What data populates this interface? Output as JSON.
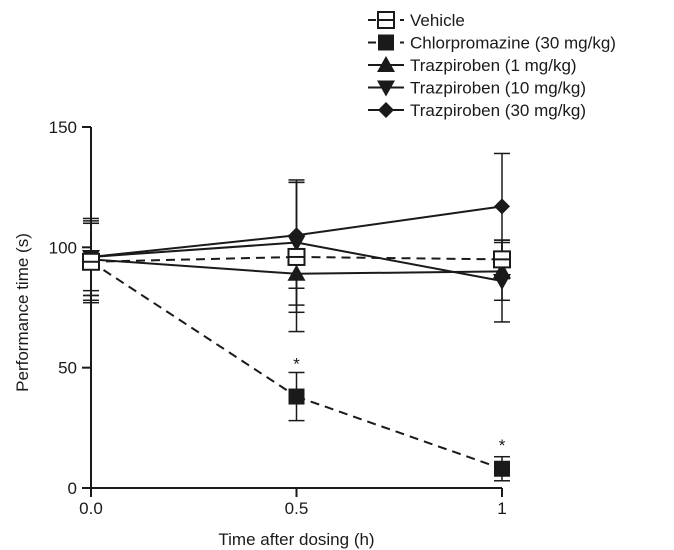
{
  "chart_data": {
    "type": "line",
    "xlabel": "Time after dosing (h)",
    "ylabel": "Performance time (s)",
    "xlim": [
      0,
      1
    ],
    "ylim": [
      0,
      150
    ],
    "x_ticks": [
      0,
      0.5,
      1
    ],
    "x_tick_labels": [
      "0.0",
      "0.5",
      "1"
    ],
    "y_ticks": [
      0,
      50,
      100,
      150
    ],
    "y_tick_labels": [
      "0",
      "50",
      "100",
      "150"
    ],
    "legend_position": "top-right",
    "grid": false,
    "x": [
      0,
      0.5,
      1
    ],
    "series": [
      {
        "name": "Vehicle",
        "values": [
          94,
          96,
          95
        ],
        "err": [
          17,
          31,
          8
        ],
        "marker": "square-open",
        "line": "dashed"
      },
      {
        "name": "Chlorpromazine (30 mg/kg)",
        "values": [
          94,
          38,
          8
        ],
        "err": [
          16,
          10,
          5
        ],
        "marker": "square",
        "line": "dashed"
      },
      {
        "name": "Trazpiroben (1 mg/kg)",
        "values": [
          95,
          89,
          90
        ],
        "err": [
          15,
          16,
          12
        ],
        "marker": "triangle-up",
        "line": "solid"
      },
      {
        "name": "Trazpiroben (10 mg/kg)",
        "values": [
          96,
          102,
          86
        ],
        "err": [
          14,
          26,
          17
        ],
        "marker": "triangle-down",
        "line": "solid"
      },
      {
        "name": "Trazpiroben (30 mg/kg)",
        "values": [
          96,
          105,
          117
        ],
        "err": [
          16,
          22,
          22
        ],
        "marker": "diamond",
        "line": "solid"
      }
    ],
    "annotations": [
      {
        "text": "*",
        "x": 0.5,
        "y": 51
      },
      {
        "text": "*",
        "x": 1,
        "y": 17
      }
    ]
  }
}
